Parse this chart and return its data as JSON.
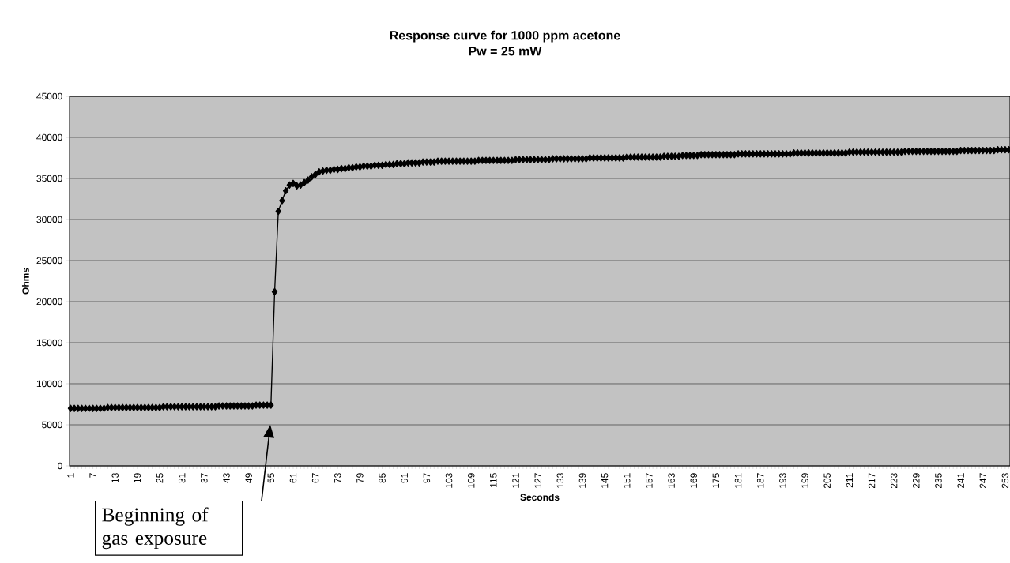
{
  "chart_data": {
    "type": "line",
    "title": "Response curve for 1000 ppm acetone",
    "subtitle": "Pw = 25 mW",
    "xlabel": "Seconds",
    "ylabel": "Ohms",
    "categories": [
      "1",
      null,
      null,
      null,
      null,
      null,
      "7",
      null,
      null,
      null,
      null,
      null,
      "13",
      null,
      null,
      null,
      null,
      null,
      "19",
      null,
      null,
      null,
      null,
      null,
      "25",
      null,
      null,
      null,
      null,
      null,
      "31",
      null,
      null,
      null,
      null,
      null,
      "37",
      null,
      null,
      null,
      null,
      null,
      "43",
      null,
      null,
      null,
      null,
      null,
      "49",
      null,
      null,
      null,
      null,
      null,
      "55",
      null,
      null,
      null,
      null,
      null,
      "61",
      null,
      null,
      null,
      null,
      null,
      "67",
      null,
      null,
      null,
      null,
      null,
      "73",
      null,
      null,
      null,
      null,
      null,
      "79",
      null,
      null,
      null,
      null,
      null,
      "85",
      null,
      null,
      null,
      null,
      null,
      "91",
      null,
      null,
      null,
      null,
      null,
      "97",
      null,
      null,
      null,
      null,
      null,
      "103",
      null,
      null,
      null,
      null,
      null,
      "109",
      null,
      null,
      null,
      null,
      null,
      "115",
      null,
      null,
      null,
      null,
      null,
      "121",
      null,
      null,
      null,
      null,
      null,
      "127",
      null,
      null,
      null,
      null,
      null,
      "133",
      null,
      null,
      null,
      null,
      null,
      "139",
      null,
      null,
      null,
      null,
      null,
      "145",
      null,
      null,
      null,
      null,
      null,
      "151",
      null,
      null,
      null,
      null,
      null,
      "157",
      null,
      null,
      null,
      null,
      null,
      "163",
      null,
      null,
      null,
      null,
      null,
      "169",
      null,
      null,
      null,
      null,
      null,
      "175",
      null,
      null,
      null,
      null,
      null,
      "181",
      null,
      null,
      null,
      null,
      null,
      "187",
      null,
      null,
      null,
      null,
      null,
      "193",
      null,
      null,
      null,
      null,
      null,
      "199",
      null,
      null,
      null,
      null,
      null,
      "205",
      null,
      null,
      null,
      null,
      null,
      "211",
      null,
      null,
      null,
      null,
      null,
      "217",
      null,
      null,
      null,
      null,
      null,
      "223",
      null,
      null,
      null,
      null,
      null,
      "229",
      null,
      null,
      null,
      null,
      null,
      "235",
      null,
      null,
      null,
      null,
      null,
      "241",
      null,
      null,
      null,
      null,
      null,
      "247",
      null,
      null,
      null,
      null,
      null,
      "253",
      null
    ],
    "series": [
      {
        "color": "#000000",
        "values": [
          7000,
          7000,
          7000,
          7000,
          7000,
          7000,
          7000,
          7000,
          7000,
          7000,
          7100,
          7100,
          7100,
          7100,
          7100,
          7100,
          7100,
          7100,
          7100,
          7100,
          7100,
          7100,
          7100,
          7100,
          7100,
          7200,
          7200,
          7200,
          7200,
          7200,
          7200,
          7200,
          7200,
          7200,
          7200,
          7200,
          7200,
          7200,
          7200,
          7200,
          7300,
          7300,
          7300,
          7300,
          7300,
          7300,
          7300,
          7300,
          7300,
          7300,
          7400,
          7400,
          7400,
          7400,
          7400,
          21200,
          31000,
          32300,
          33500,
          34200,
          34400,
          34100,
          34200,
          34500,
          34800,
          35200,
          35500,
          35800,
          35900,
          36000,
          36000,
          36100,
          36100,
          36200,
          36200,
          36300,
          36300,
          36400,
          36400,
          36500,
          36500,
          36500,
          36600,
          36600,
          36600,
          36700,
          36700,
          36700,
          36800,
          36800,
          36800,
          36900,
          36900,
          36900,
          36900,
          37000,
          37000,
          37000,
          37000,
          37100,
          37100,
          37100,
          37100,
          37100,
          37100,
          37100,
          37100,
          37100,
          37100,
          37100,
          37200,
          37200,
          37200,
          37200,
          37200,
          37200,
          37200,
          37200,
          37200,
          37200,
          37300,
          37300,
          37300,
          37300,
          37300,
          37300,
          37300,
          37300,
          37300,
          37300,
          37400,
          37400,
          37400,
          37400,
          37400,
          37400,
          37400,
          37400,
          37400,
          37400,
          37500,
          37500,
          37500,
          37500,
          37500,
          37500,
          37500,
          37500,
          37500,
          37500,
          37600,
          37600,
          37600,
          37600,
          37600,
          37600,
          37600,
          37600,
          37600,
          37600,
          37700,
          37700,
          37700,
          37700,
          37700,
          37800,
          37800,
          37800,
          37800,
          37800,
          37900,
          37900,
          37900,
          37900,
          37900,
          37900,
          37900,
          37900,
          37900,
          37900,
          38000,
          38000,
          38000,
          38000,
          38000,
          38000,
          38000,
          38000,
          38000,
          38000,
          38000,
          38000,
          38000,
          38000,
          38000,
          38100,
          38100,
          38100,
          38100,
          38100,
          38100,
          38100,
          38100,
          38100,
          38100,
          38100,
          38100,
          38100,
          38100,
          38100,
          38200,
          38200,
          38200,
          38200,
          38200,
          38200,
          38200,
          38200,
          38200,
          38200,
          38200,
          38200,
          38200,
          38200,
          38200,
          38300,
          38300,
          38300,
          38300,
          38300,
          38300,
          38300,
          38300,
          38300,
          38300,
          38300,
          38300,
          38300,
          38300,
          38300,
          38400,
          38400,
          38400,
          38400,
          38400,
          38400,
          38400,
          38400,
          38400,
          38400,
          38500,
          38500,
          38500,
          38500
        ]
      }
    ],
    "ylim": [
      0,
      45000
    ],
    "yticks": [
      0,
      5000,
      10000,
      15000,
      20000,
      25000,
      30000,
      35000,
      40000,
      45000
    ],
    "grid": "y",
    "marker": "diamond",
    "line_style": "solid",
    "annotations": [
      "Beginning of gas exposure"
    ]
  }
}
